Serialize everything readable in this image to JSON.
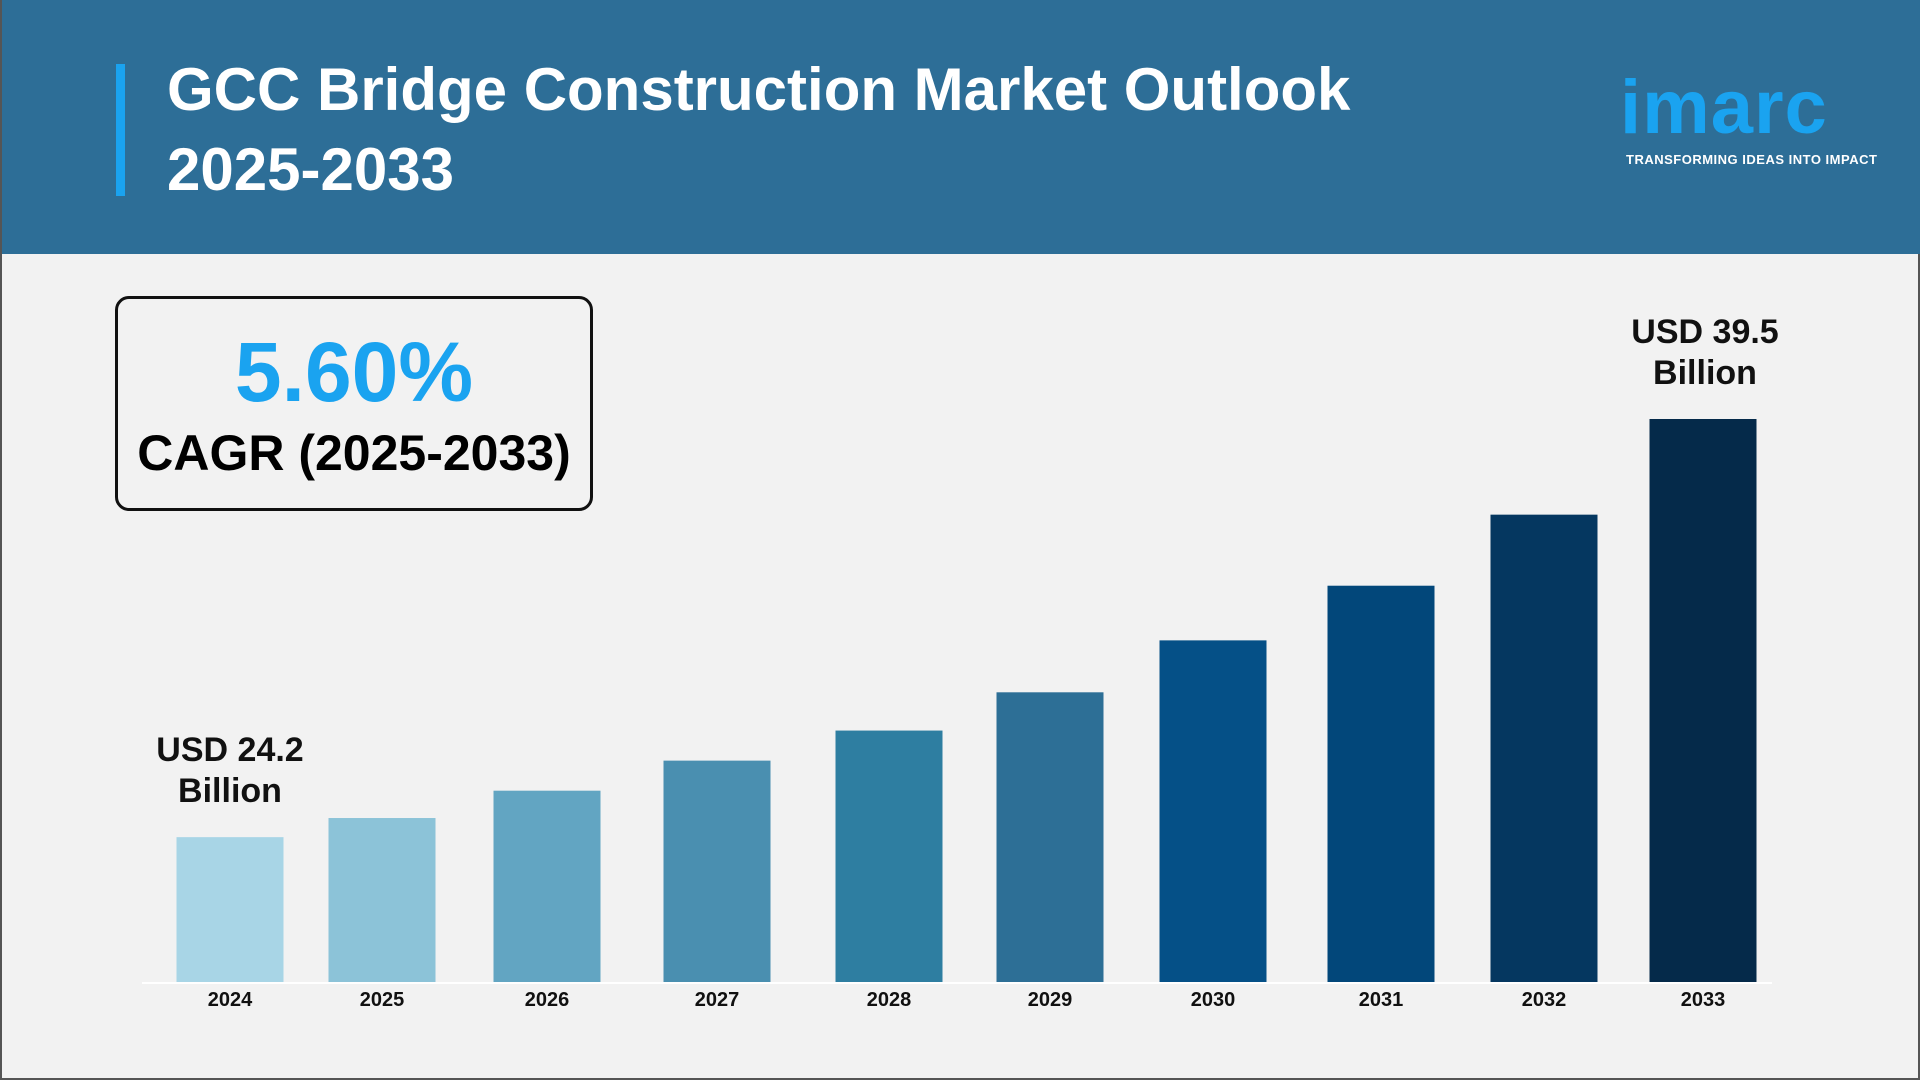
{
  "header": {
    "title_line1": "GCC Bridge Construction Market Outlook",
    "title_line2": "2025-2033",
    "logo_text": "imarc",
    "logo_tagline": "TRANSFORMING IDEAS INTO IMPACT"
  },
  "cagr": {
    "value": "5.60%",
    "label": "CAGR (2025-2033)",
    "color": "#1aa3f0"
  },
  "chart_data": {
    "type": "bar",
    "title": "GCC Bridge Construction Market Outlook 2025-2033",
    "categories": [
      "2024",
      "2025",
      "2026",
      "2027",
      "2028",
      "2029",
      "2030",
      "2031",
      "2032",
      "2033"
    ],
    "values": [
      24.2,
      24.9,
      25.9,
      27.0,
      28.1,
      29.5,
      31.4,
      33.4,
      36.0,
      39.5
    ],
    "unit": "USD Billion",
    "ylim": [
      18.9,
      40
    ],
    "grid": false,
    "colors": [
      "#a8d5e6",
      "#8cc3d8",
      "#62a5c2",
      "#4a8fb0",
      "#2e7ea1",
      "#2d6f96",
      "#055087",
      "#02477a",
      "#053760",
      "#052a4a"
    ],
    "annotations": {
      "first": {
        "line1": "USD 24.2",
        "line2": "Billion"
      },
      "last": {
        "line1": "USD 39.5",
        "line2": "Billion"
      }
    }
  }
}
